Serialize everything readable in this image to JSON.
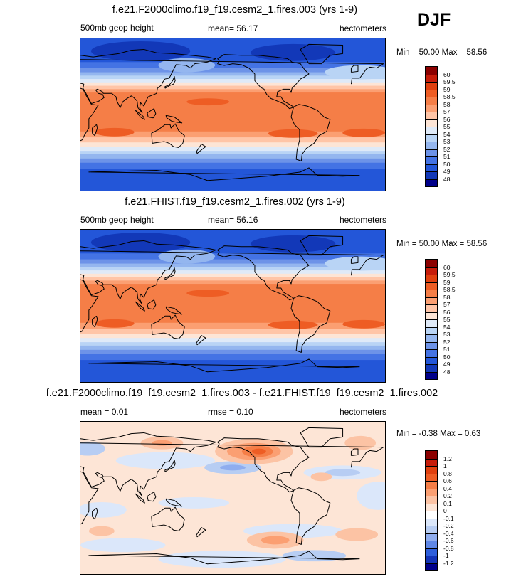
{
  "season": "DJF",
  "panels": [
    {
      "title": "f.e21.F2000climo.f19_f19.cesm2_1.fires.003 (yrs 1-9)",
      "left_label": "500mb geop height",
      "center_label": "mean=  56.17",
      "right_label": "hectometers",
      "minmax": "Min =  50.00 Max =  58.56",
      "kind": "abs",
      "colorbar": {
        "colors": [
          "#8b0000",
          "#c61c0a",
          "#e0400f",
          "#ee5d24",
          "#f57e47",
          "#fb9f72",
          "#ffc5a7",
          "#fde5d6",
          "#dfeaf8",
          "#b9d4f5",
          "#94b6ef",
          "#6d93e8",
          "#4473e4",
          "#2356d8",
          "#1238b8",
          "#00008a"
        ],
        "labels": [
          "60",
          "59.5",
          "59",
          "58.5",
          "58",
          "57",
          "56",
          "55",
          "54",
          "53",
          "52",
          "51",
          "50",
          "49",
          "48"
        ]
      }
    },
    {
      "title": "f.e21.FHIST.f19_f19.cesm2_1.fires.002 (yrs 1-9)",
      "left_label": "500mb geop height",
      "center_label": "mean=  56.16",
      "right_label": "hectometers",
      "minmax": "Min =  50.00 Max =  58.56",
      "kind": "abs",
      "colorbar": {
        "colors": [
          "#8b0000",
          "#c61c0a",
          "#e0400f",
          "#ee5d24",
          "#f57e47",
          "#fb9f72",
          "#ffc5a7",
          "#fde5d6",
          "#dfeaf8",
          "#b9d4f5",
          "#94b6ef",
          "#6d93e8",
          "#4473e4",
          "#2356d8",
          "#1238b8",
          "#00008a"
        ],
        "labels": [
          "60",
          "59.5",
          "59",
          "58.5",
          "58",
          "57",
          "56",
          "55",
          "54",
          "53",
          "52",
          "51",
          "50",
          "49",
          "48"
        ]
      }
    },
    {
      "title": "f.e21.F2000climo.f19_f19.cesm2_1.fires.003 - f.e21.FHIST.f19_f19.cesm2_1.fires.002",
      "left_label": "mean =   0.01",
      "center_label": "rmse =   0.10",
      "right_label": "hectometers",
      "minmax": "Min =  -0.38 Max =   0.63",
      "kind": "diff",
      "colorbar": {
        "colors": [
          "#8b0000",
          "#c61c0a",
          "#e0400f",
          "#ee5d24",
          "#f57e47",
          "#fb9f72",
          "#fcc3a4",
          "#fde5d6",
          "#ffffff",
          "#dbe7fa",
          "#b7cdf3",
          "#8fadef",
          "#5f87e6",
          "#2e5fdc",
          "#1334b8",
          "#00008a"
        ],
        "labels": [
          "1.2",
          "1",
          "0.8",
          "0.6",
          "0.4",
          "0.2",
          "0.1",
          "0",
          "-0.1",
          "-0.2",
          "-0.4",
          "-0.6",
          "-0.8",
          "-1",
          "-1.2"
        ]
      }
    }
  ]
}
